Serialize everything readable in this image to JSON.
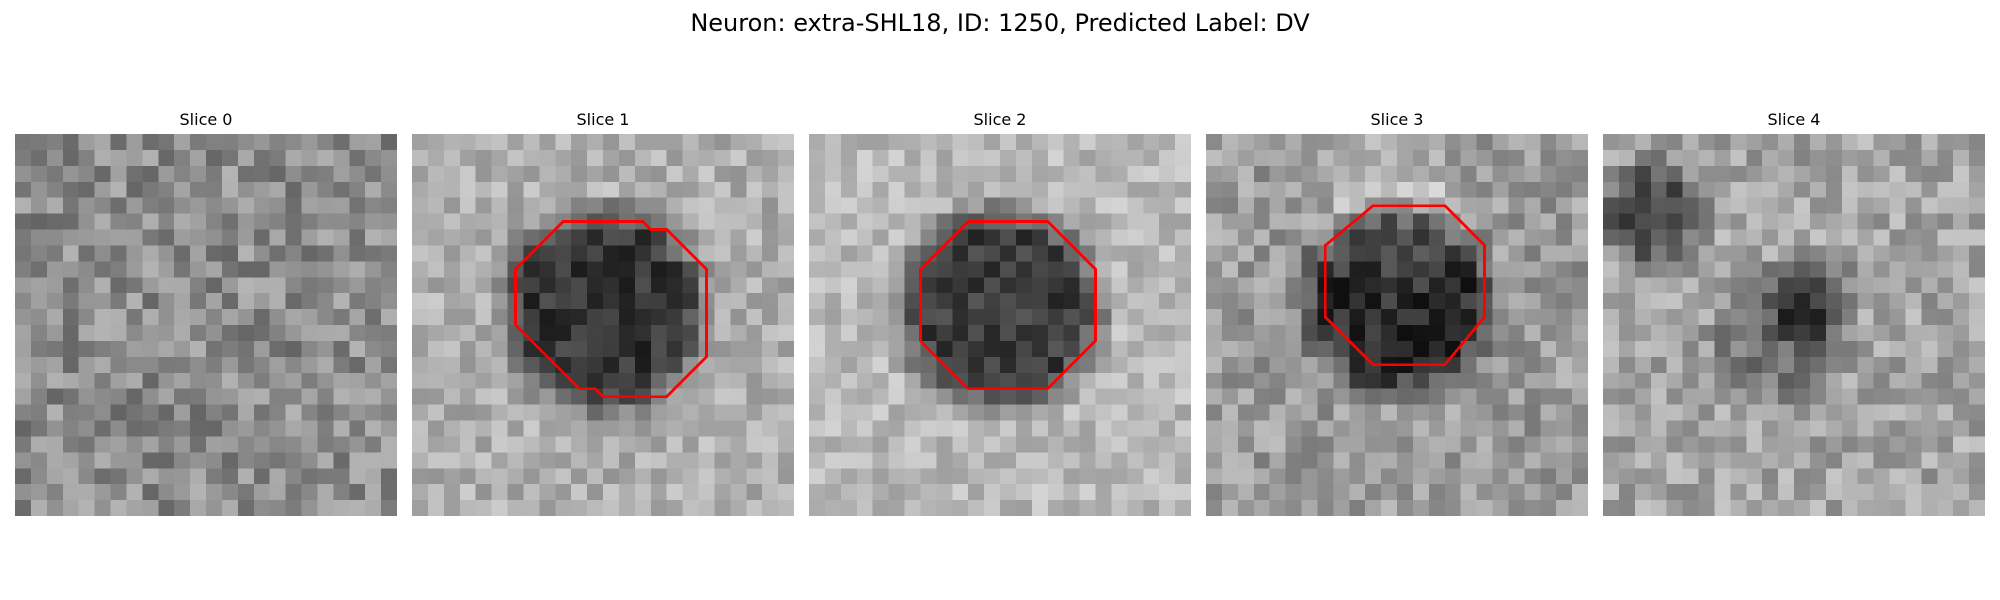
{
  "figure": {
    "title": "Neuron: extra-SHL18, ID: 1250, Predicted Label: DV",
    "outline_color": "#ff0000"
  },
  "panels": [
    {
      "title": "Slice 0",
      "has_outline": false
    },
    {
      "title": "Slice 1",
      "has_outline": true
    },
    {
      "title": "Slice 2",
      "has_outline": true
    },
    {
      "title": "Slice 3",
      "has_outline": true
    },
    {
      "title": "Slice 4",
      "has_outline": false
    }
  ]
}
